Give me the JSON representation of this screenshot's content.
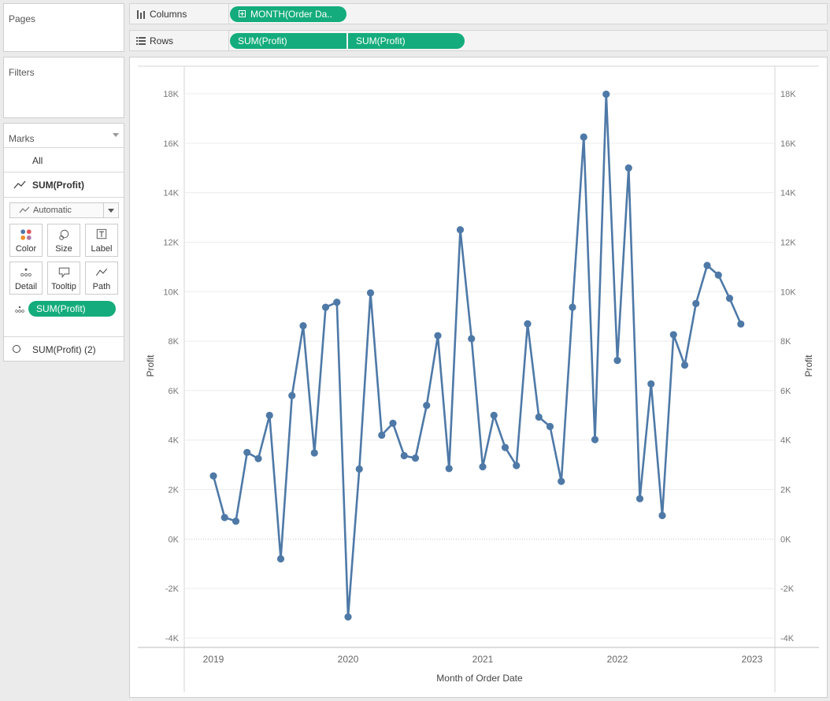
{
  "cards": {
    "pages_title": "Pages",
    "filters_title": "Filters",
    "marks_title": "Marks"
  },
  "marks": {
    "all_label": "All",
    "sum_label": "SUM(Profit)",
    "type_value": "Automatic",
    "buttons": [
      {
        "label": "Color",
        "icon": "color-icon"
      },
      {
        "label": "Size",
        "icon": "size-icon"
      },
      {
        "label": "Label",
        "icon": "label-icon"
      },
      {
        "label": "Detail",
        "icon": "detail-icon"
      },
      {
        "label": "Tooltip",
        "icon": "tooltip-icon"
      },
      {
        "label": "Path",
        "icon": "path-icon"
      }
    ],
    "field_pill": "SUM(Profit)",
    "second_label": "SUM(Profit) (2)"
  },
  "shelves": {
    "columns_label": "Columns",
    "columns_pill": "MONTH(Order Da..",
    "rows_label": "Rows",
    "rows_pills": [
      "SUM(Profit)",
      "SUM(Profit)"
    ]
  },
  "chart_data": {
    "type": "line",
    "xlabel": "Month of Order Date",
    "ylabel": "Profit",
    "ylabel_right": "Profit",
    "x_ticks": [
      "2019",
      "2020",
      "2021",
      "2022",
      "2023"
    ],
    "y_ticks": [
      "18K",
      "16K",
      "14K",
      "12K",
      "10K",
      "8K",
      "6K",
      "4K",
      "2K",
      "0K",
      "-2K",
      "-4K"
    ],
    "ylim": [
      -4000,
      18000
    ],
    "grid": true,
    "color": "#4e79a7",
    "series": [
      {
        "x": [
          "2019-01",
          "2019-02",
          "2019-03",
          "2019-04",
          "2019-05",
          "2019-06",
          "2019-07",
          "2019-08",
          "2019-09",
          "2019-10",
          "2019-11",
          "2019-12",
          "2020-01",
          "2020-02",
          "2020-03",
          "2020-04",
          "2020-05",
          "2020-06",
          "2020-07",
          "2020-08",
          "2020-09",
          "2020-10",
          "2020-11",
          "2020-12",
          "2021-01",
          "2021-02",
          "2021-03",
          "2021-04",
          "2021-05",
          "2021-06",
          "2021-07",
          "2021-08",
          "2021-09",
          "2021-10",
          "2021-11",
          "2021-12",
          "2022-01",
          "2022-02",
          "2022-03",
          "2022-04",
          "2022-05",
          "2022-06",
          "2022-07",
          "2022-08",
          "2022-09",
          "2022-10",
          "2022-11",
          "2022-12"
        ],
        "values": [
          2550,
          870,
          720,
          3500,
          3250,
          5000,
          -800,
          5800,
          8620,
          3480,
          9370,
          9570,
          -3150,
          2830,
          9950,
          4200,
          4680,
          3370,
          3270,
          5400,
          8220,
          2850,
          12500,
          8100,
          2920,
          5000,
          3700,
          2970,
          8700,
          4930,
          4550,
          2330,
          9370,
          16250,
          4020,
          17980,
          7220,
          15000,
          1630,
          6270,
          950,
          8260,
          7030,
          9520,
          11060,
          10670,
          9730,
          8690
        ]
      }
    ]
  }
}
